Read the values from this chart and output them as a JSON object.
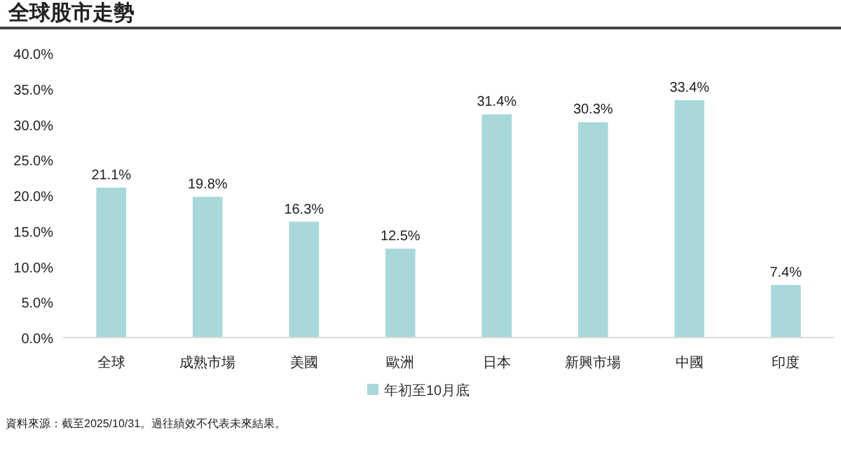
{
  "chart_data": {
    "type": "bar",
    "title": "全球股市走勢",
    "categories": [
      "全球",
      "成熟市場",
      "美國",
      "歐洲",
      "日本",
      "新興市場",
      "中國",
      "印度"
    ],
    "series": [
      {
        "name": "年初至10月底",
        "color": "#a8d8da",
        "values": [
          21.1,
          19.8,
          16.3,
          12.5,
          31.4,
          30.3,
          33.4,
          7.4
        ]
      }
    ],
    "ylim": [
      0,
      40
    ],
    "yticks": [
      {
        "value": 0,
        "label": "0.0%"
      },
      {
        "value": 5,
        "label": "5.0%"
      },
      {
        "value": 10,
        "label": "10.0%"
      },
      {
        "value": 15,
        "label": "15.0%"
      },
      {
        "value": 20,
        "label": "20.0%"
      },
      {
        "value": 25,
        "label": "25.0%"
      },
      {
        "value": 30,
        "label": "30.0%"
      },
      {
        "value": 35,
        "label": "35.0%"
      },
      {
        "value": 40,
        "label": "40.0%"
      }
    ],
    "value_labels": [
      "21.1%",
      "19.8%",
      "16.3%",
      "12.5%",
      "31.4%",
      "30.3%",
      "33.4%",
      "7.4%"
    ],
    "legend": "bottom",
    "grid": false,
    "annotations": [
      "資料來源：截至2025/10/31。過往績效不代表未來結果。"
    ]
  }
}
